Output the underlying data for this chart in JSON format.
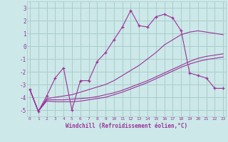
{
  "xlabel": "Windchill (Refroidissement éolien,°C)",
  "background_color": "#cce8e8",
  "grid_color": "#aacccc",
  "line_color": "#993399",
  "x_ticks": [
    0,
    1,
    2,
    3,
    4,
    5,
    6,
    7,
    8,
    9,
    10,
    11,
    12,
    13,
    14,
    15,
    16,
    17,
    18,
    19,
    20,
    21,
    22,
    23
  ],
  "ylim": [
    -5.5,
    3.5
  ],
  "xlim": [
    -0.3,
    23.3
  ],
  "line1_x": [
    0,
    1,
    2,
    3,
    4,
    5,
    6,
    7,
    8,
    9,
    10,
    11,
    12,
    13,
    14,
    15,
    16,
    17,
    18,
    19,
    20,
    21,
    22,
    23
  ],
  "line1_y": [
    -3.4,
    -5.1,
    -3.9,
    -2.5,
    -1.7,
    -5.0,
    -2.7,
    -2.7,
    -1.2,
    -0.5,
    0.5,
    1.5,
    2.8,
    1.6,
    1.5,
    2.3,
    2.5,
    2.2,
    1.2,
    -2.1,
    -2.3,
    -2.5,
    -3.3,
    -3.3
  ],
  "line2_x": [
    0,
    1,
    2,
    3,
    4,
    5,
    6,
    7,
    8,
    9,
    10,
    11,
    12,
    13,
    14,
    15,
    16,
    17,
    18,
    19,
    20,
    21,
    22,
    23
  ],
  "line2_y": [
    -3.4,
    -5.1,
    -4.1,
    -4.0,
    -3.9,
    -3.8,
    -3.6,
    -3.4,
    -3.2,
    -3.0,
    -2.7,
    -2.3,
    -1.9,
    -1.5,
    -1.0,
    -0.5,
    0.1,
    0.5,
    0.9,
    1.1,
    1.2,
    1.1,
    1.0,
    0.9
  ],
  "line3_x": [
    0,
    1,
    2,
    3,
    4,
    5,
    6,
    7,
    8,
    9,
    10,
    11,
    12,
    13,
    14,
    15,
    16,
    17,
    18,
    19,
    20,
    21,
    22,
    23
  ],
  "line3_y": [
    -3.4,
    -5.1,
    -4.2,
    -4.2,
    -4.2,
    -4.15,
    -4.1,
    -4.05,
    -3.95,
    -3.8,
    -3.65,
    -3.45,
    -3.2,
    -2.95,
    -2.7,
    -2.4,
    -2.1,
    -1.8,
    -1.5,
    -1.2,
    -0.95,
    -0.8,
    -0.7,
    -0.6
  ],
  "line4_x": [
    0,
    1,
    2,
    3,
    4,
    5,
    6,
    7,
    8,
    9,
    10,
    11,
    12,
    13,
    14,
    15,
    16,
    17,
    18,
    19,
    20,
    21,
    22,
    23
  ],
  "line4_y": [
    -3.4,
    -5.1,
    -4.3,
    -4.35,
    -4.35,
    -4.35,
    -4.3,
    -4.2,
    -4.1,
    -4.0,
    -3.8,
    -3.6,
    -3.35,
    -3.1,
    -2.85,
    -2.55,
    -2.25,
    -1.95,
    -1.65,
    -1.4,
    -1.2,
    -1.05,
    -0.95,
    -0.85
  ]
}
